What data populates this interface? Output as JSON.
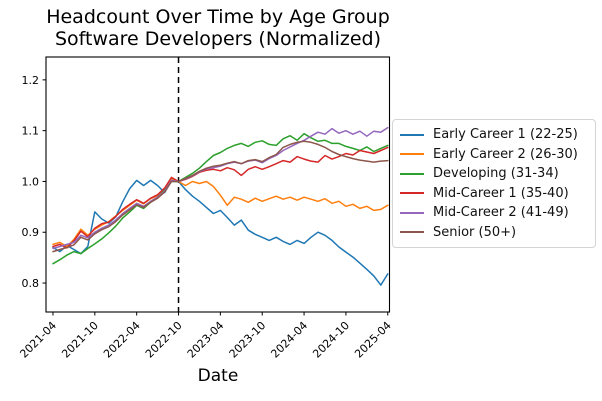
{
  "figure": {
    "title_line1": "Headcount Over Time by Age Group",
    "title_line2": "Software Developers (Normalized)",
    "xlabel": "Date",
    "background": "#ffffff",
    "axes_color": "#000000",
    "legend_border_color": "#d4d4d4"
  },
  "chart_data": {
    "type": "line",
    "title": "Headcount Over Time by Age Group\nSoftware Developers (Normalized)",
    "xlabel": "Date",
    "ylabel": "",
    "grid": false,
    "legend_position": "center-right-outside",
    "yticks": [
      0.8,
      0.9,
      1.0,
      1.1,
      1.2
    ],
    "ytick_labels": [
      "0.8",
      "0.9",
      "1.0",
      "1.1",
      "1.2"
    ],
    "ylim": [
      0.743,
      1.245
    ],
    "xlim_index": [
      -1.0,
      48.25
    ],
    "xtick_labels": [
      "2021-04",
      "2021-10",
      "2022-04",
      "2022-10",
      "2023-04",
      "2023-10",
      "2024-04",
      "2024-10",
      "2025-04"
    ],
    "vline": {
      "x": "2022-10",
      "style": "dashed",
      "color": "#000000"
    },
    "x": [
      "2021-04",
      "2021-05",
      "2021-06",
      "2021-07",
      "2021-08",
      "2021-09",
      "2021-10",
      "2021-11",
      "2021-12",
      "2022-01",
      "2022-02",
      "2022-03",
      "2022-04",
      "2022-05",
      "2022-06",
      "2022-07",
      "2022-08",
      "2022-09",
      "2022-10",
      "2022-11",
      "2022-12",
      "2023-01",
      "2023-02",
      "2023-03",
      "2023-04",
      "2023-05",
      "2023-06",
      "2023-07",
      "2023-08",
      "2023-09",
      "2023-10",
      "2023-11",
      "2023-12",
      "2024-01",
      "2024-02",
      "2024-03",
      "2024-04",
      "2024-05",
      "2024-06",
      "2024-07",
      "2024-08",
      "2024-09",
      "2024-10",
      "2024-11",
      "2024-12",
      "2025-01",
      "2025-02",
      "2025-03",
      "2025-04"
    ],
    "series": [
      {
        "name": "Early Career 1 (22-25)",
        "color": "#1f77b4",
        "values": [
          0.87,
          0.862,
          0.874,
          0.866,
          0.858,
          0.872,
          0.94,
          0.926,
          0.918,
          0.93,
          0.96,
          0.986,
          1.002,
          0.992,
          1.002,
          0.992,
          0.978,
          1.002,
          1.0,
          0.984,
          0.971,
          0.961,
          0.949,
          0.937,
          0.943,
          0.929,
          0.914,
          0.924,
          0.904,
          0.896,
          0.89,
          0.884,
          0.89,
          0.882,
          0.876,
          0.884,
          0.878,
          0.89,
          0.9,
          0.894,
          0.884,
          0.871,
          0.861,
          0.851,
          0.839,
          0.827,
          0.814,
          0.796,
          0.818
        ]
      },
      {
        "name": "Early Career 2 (26-30)",
        "color": "#ff7f0e",
        "values": [
          0.876,
          0.88,
          0.872,
          0.886,
          0.906,
          0.894,
          0.906,
          0.914,
          0.921,
          0.932,
          0.943,
          0.953,
          0.963,
          0.956,
          0.966,
          0.972,
          0.984,
          1.006,
          1.0,
          0.992,
          1.0,
          0.996,
          1.0,
          0.99,
          0.973,
          0.953,
          0.969,
          0.965,
          0.959,
          0.967,
          0.961,
          0.966,
          0.971,
          0.965,
          0.969,
          0.963,
          0.969,
          0.965,
          0.961,
          0.966,
          0.957,
          0.961,
          0.951,
          0.955,
          0.947,
          0.951,
          0.943,
          0.945,
          0.953
        ]
      },
      {
        "name": "Developing (31-34)",
        "color": "#2ca02c",
        "values": [
          0.838,
          0.846,
          0.855,
          0.862,
          0.858,
          0.868,
          0.877,
          0.887,
          0.899,
          0.912,
          0.928,
          0.94,
          0.953,
          0.947,
          0.959,
          0.969,
          0.983,
          1.0,
          1.0,
          1.008,
          1.016,
          1.026,
          1.039,
          1.051,
          1.057,
          1.065,
          1.071,
          1.075,
          1.069,
          1.077,
          1.08,
          1.073,
          1.071,
          1.084,
          1.09,
          1.081,
          1.094,
          1.086,
          1.079,
          1.081,
          1.075,
          1.075,
          1.069,
          1.065,
          1.061,
          1.068,
          1.059,
          1.065,
          1.071
        ]
      },
      {
        "name": "Mid-Career 1 (35-40)",
        "color": "#d62728",
        "values": [
          0.872,
          0.876,
          0.869,
          0.883,
          0.902,
          0.891,
          0.908,
          0.917,
          0.92,
          0.931,
          0.945,
          0.955,
          0.964,
          0.957,
          0.967,
          0.974,
          0.987,
          1.008,
          1.0,
          1.004,
          1.01,
          1.018,
          1.022,
          1.024,
          1.021,
          1.027,
          1.023,
          1.012,
          1.024,
          1.029,
          1.024,
          1.029,
          1.035,
          1.041,
          1.038,
          1.049,
          1.044,
          1.04,
          1.038,
          1.051,
          1.044,
          1.049,
          1.055,
          1.052,
          1.061,
          1.058,
          1.055,
          1.061,
          1.067
        ]
      },
      {
        "name": "Mid-Career 2 (41-49)",
        "color": "#9467bd",
        "values": [
          0.868,
          0.872,
          0.876,
          0.88,
          0.894,
          0.889,
          0.9,
          0.908,
          0.914,
          0.924,
          0.937,
          0.947,
          0.957,
          0.951,
          0.961,
          0.969,
          0.981,
          1.002,
          1.0,
          1.005,
          1.011,
          1.019,
          1.025,
          1.027,
          1.03,
          1.035,
          1.038,
          1.035,
          1.04,
          1.042,
          1.037,
          1.045,
          1.051,
          1.061,
          1.068,
          1.075,
          1.081,
          1.089,
          1.097,
          1.093,
          1.104,
          1.095,
          1.1,
          1.093,
          1.099,
          1.089,
          1.099,
          1.097,
          1.106
        ]
      },
      {
        "name": "Senior (50+)",
        "color": "#8c564b",
        "values": [
          0.862,
          0.866,
          0.87,
          0.875,
          0.89,
          0.885,
          0.897,
          0.905,
          0.911,
          0.921,
          0.934,
          0.944,
          0.954,
          0.949,
          0.959,
          0.967,
          0.979,
          1.0,
          1.0,
          1.006,
          1.012,
          1.02,
          1.026,
          1.03,
          1.032,
          1.036,
          1.039,
          1.035,
          1.041,
          1.043,
          1.039,
          1.047,
          1.053,
          1.067,
          1.073,
          1.077,
          1.079,
          1.077,
          1.073,
          1.067,
          1.059,
          1.053,
          1.049,
          1.045,
          1.042,
          1.04,
          1.038,
          1.04,
          1.041
        ]
      }
    ]
  }
}
